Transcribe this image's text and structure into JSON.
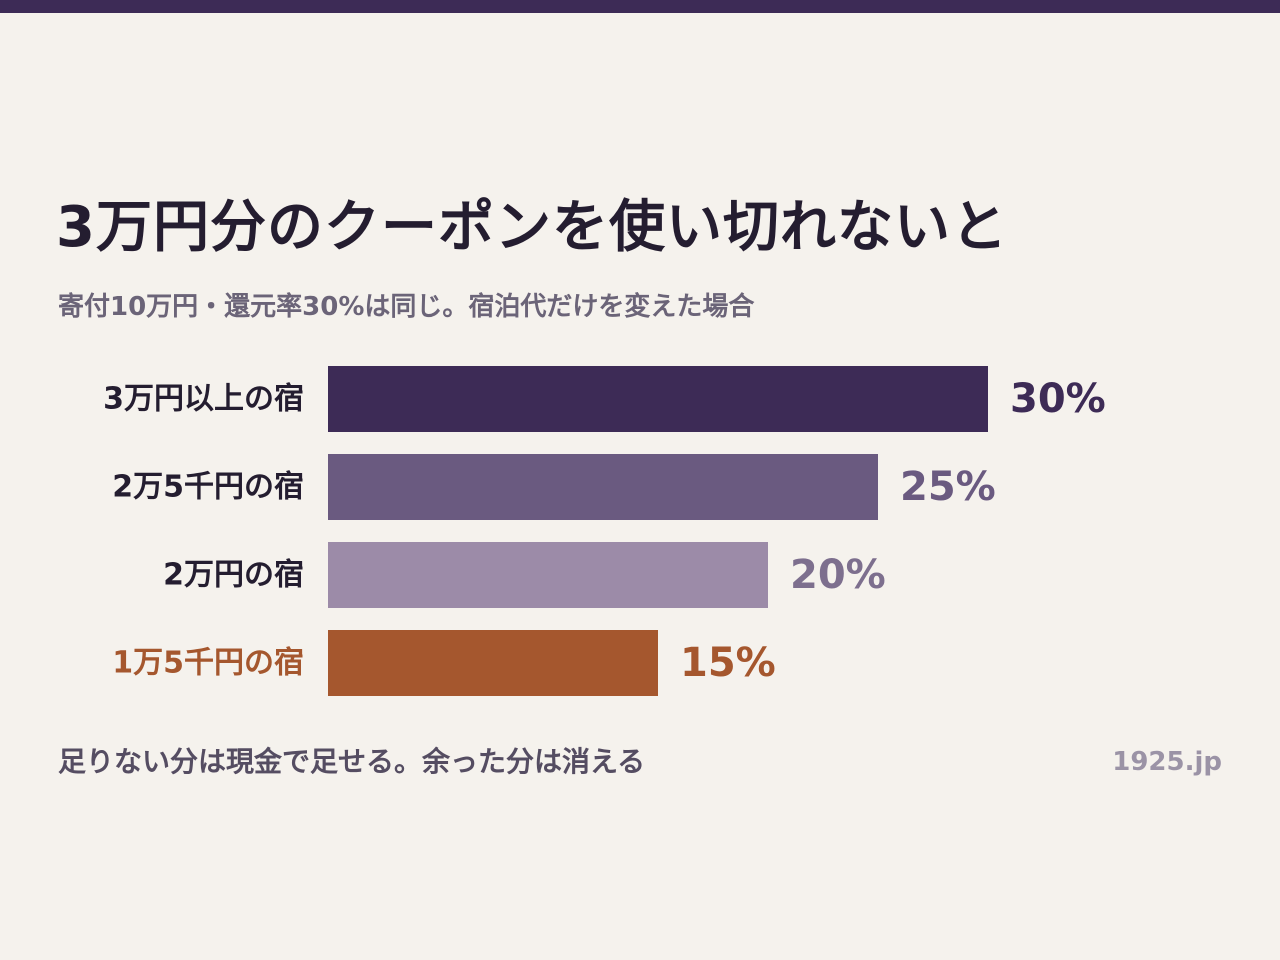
{
  "colors": {
    "background": "#f5f2ed",
    "top_band": "#3d2b56",
    "title": "#241d30",
    "subtitle": "#6b6478",
    "label_default": "#241d30",
    "highlight": "#a5572e",
    "footer_note": "#554d62",
    "source": "#9b93a6"
  },
  "header": {
    "title": "3万円分のクーポンを使い切れないと",
    "subtitle": "寄付10万円・還元率30%は同じ。宿泊代だけを変えた場合"
  },
  "chart_data": {
    "type": "bar",
    "orientation": "horizontal",
    "title": "3万円分のクーポンを使い切れないと",
    "subtitle": "寄付10万円・還元率30%は同じ。宿泊代だけを変えた場合",
    "xlabel": "",
    "ylabel": "",
    "unit": "%",
    "xlim": [
      0,
      30
    ],
    "grid": false,
    "legend": "none",
    "categories": [
      "3万円以上の宿",
      "2万5千円の宿",
      "2万円の宿",
      "1万5千円の宿"
    ],
    "values": [
      30,
      25,
      20,
      15
    ],
    "value_labels": [
      "30%",
      "25%",
      "20%",
      "15%"
    ],
    "bar_colors": [
      "#3d2b56",
      "#6a5a80",
      "#9c8ba8",
      "#a5572e"
    ],
    "value_label_colors": [
      "#3d2b56",
      "#6a5a80",
      "#7d6f8e",
      "#a5572e"
    ],
    "category_label_colors": [
      "#241d30",
      "#241d30",
      "#241d30",
      "#a5572e"
    ],
    "highlighted_category": "1万5千円の宿"
  },
  "footer": {
    "note": "足りない分は現金で足せる。余った分は消える",
    "source": "1925.jp"
  }
}
